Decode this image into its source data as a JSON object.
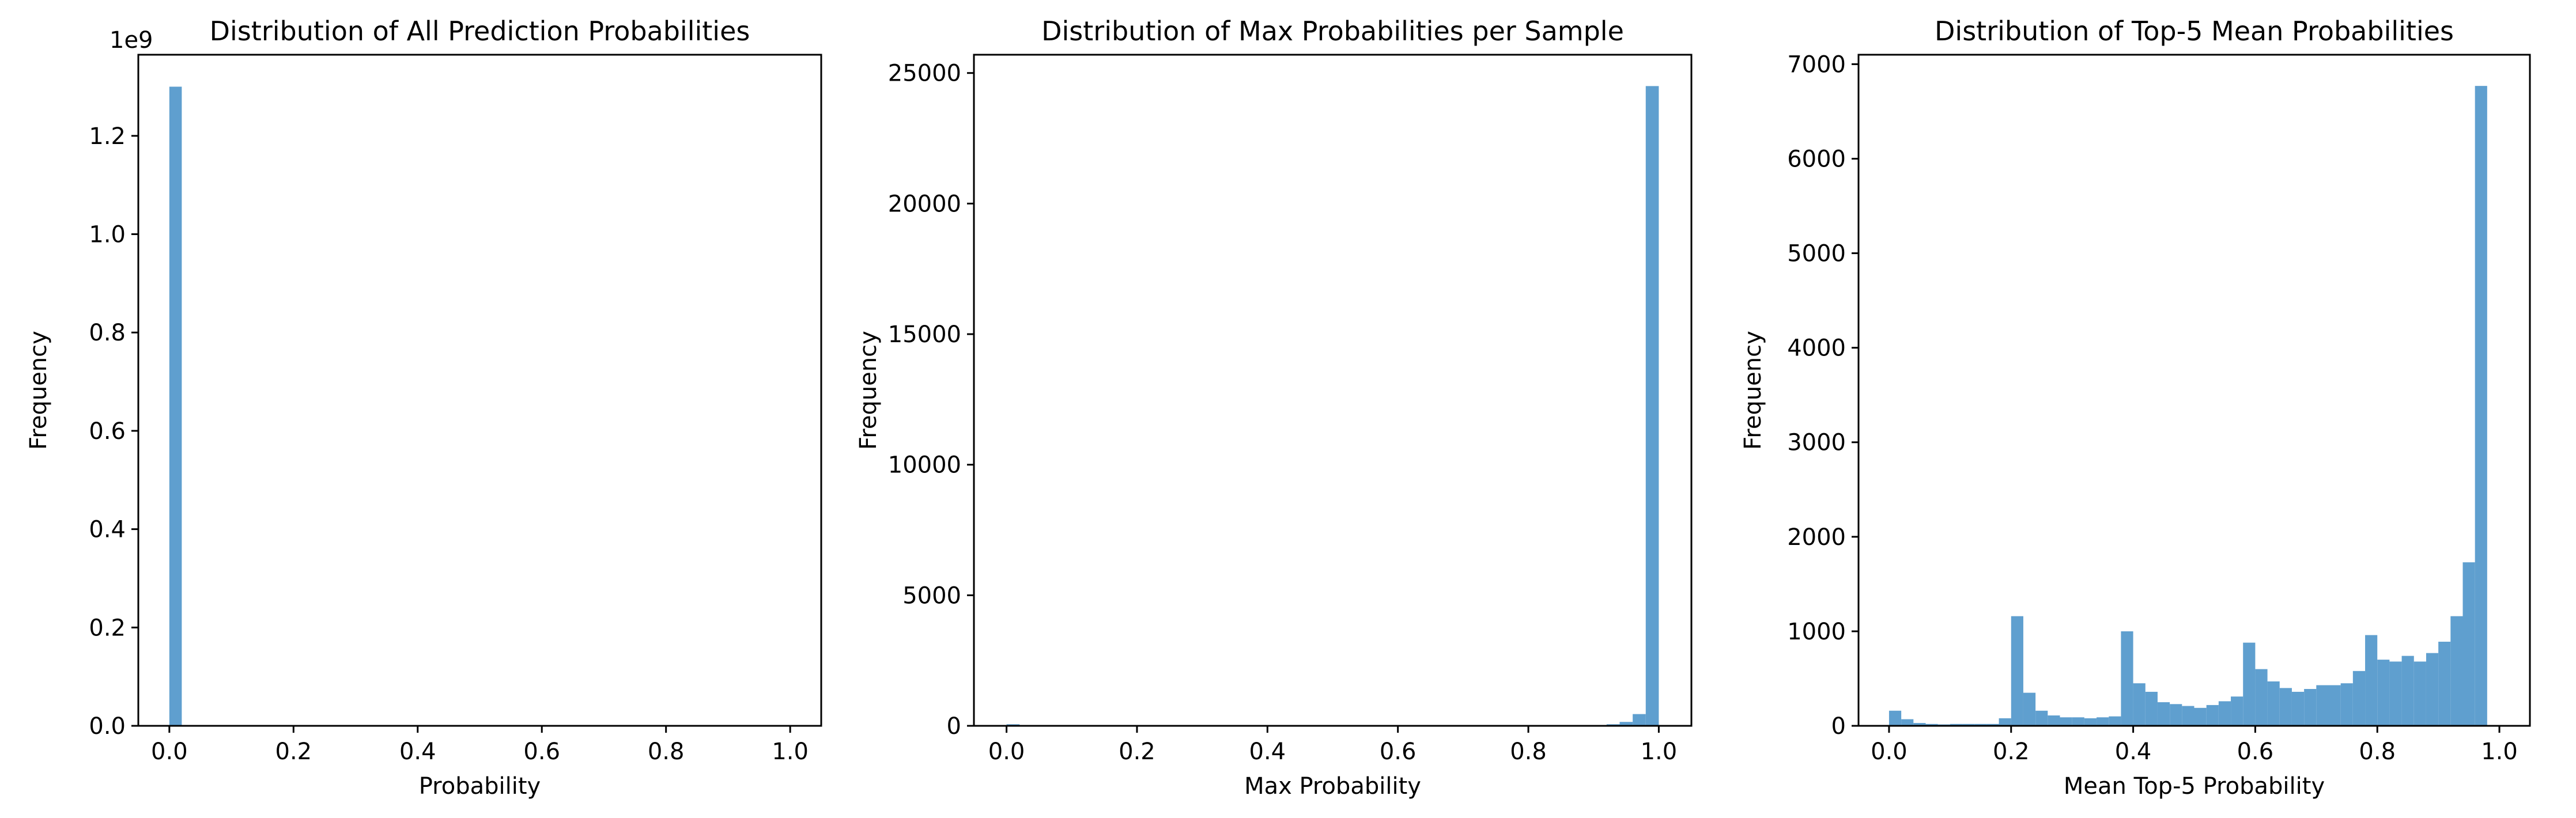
{
  "colors": {
    "bar": "#5f9fcf"
  },
  "chart_data": [
    {
      "type": "bar",
      "title": "Distribution of All Prediction Probabilities",
      "xlabel": "Probability",
      "ylabel": "Frequency",
      "x_ticks": [
        "0.0",
        "0.2",
        "0.4",
        "0.6",
        "0.8",
        "1.0"
      ],
      "y_ticks": [
        "0.0",
        "0.2",
        "0.4",
        "0.6",
        "0.8",
        "1.0",
        "1.2"
      ],
      "y_offset_text": "1e9",
      "xlim": [
        -0.05,
        1.05
      ],
      "ylim": [
        0,
        1365000000
      ],
      "bins": 50,
      "bin_range": [
        0,
        1
      ],
      "values": [
        1300000000,
        0,
        0,
        0,
        0,
        0,
        0,
        0,
        0,
        0,
        0,
        0,
        0,
        0,
        0,
        0,
        0,
        0,
        0,
        0,
        0,
        0,
        0,
        0,
        0,
        0,
        0,
        0,
        0,
        0,
        0,
        0,
        0,
        0,
        0,
        0,
        0,
        0,
        0,
        0,
        0,
        0,
        0,
        0,
        0,
        0,
        0,
        0,
        0,
        0
      ]
    },
    {
      "type": "bar",
      "title": "Distribution of Max Probabilities per Sample",
      "xlabel": "Max Probability",
      "ylabel": "Frequency",
      "x_ticks": [
        "0.0",
        "0.2",
        "0.4",
        "0.6",
        "0.8",
        "1.0"
      ],
      "y_ticks": [
        "0",
        "5000",
        "10000",
        "15000",
        "20000",
        "25000"
      ],
      "xlim": [
        -0.05,
        1.05
      ],
      "ylim": [
        0,
        25700
      ],
      "bins": 50,
      "bin_range": [
        0,
        1
      ],
      "values": [
        60,
        10,
        5,
        3,
        2,
        2,
        2,
        2,
        2,
        2,
        2,
        2,
        2,
        2,
        2,
        2,
        2,
        2,
        2,
        2,
        2,
        2,
        2,
        2,
        2,
        2,
        2,
        2,
        2,
        2,
        2,
        2,
        2,
        2,
        2,
        2,
        3,
        3,
        4,
        5,
        6,
        8,
        10,
        15,
        20,
        30,
        60,
        150,
        450,
        24500
      ]
    },
    {
      "type": "bar",
      "title": "Distribution of Top-5 Mean Probabilities",
      "xlabel": "Mean Top-5 Probability",
      "ylabel": "Frequency",
      "x_ticks": [
        "0.0",
        "0.2",
        "0.4",
        "0.6",
        "0.8",
        "1.0"
      ],
      "y_ticks": [
        "0",
        "1000",
        "2000",
        "3000",
        "4000",
        "5000",
        "6000",
        "7000"
      ],
      "xlim": [
        -0.05,
        1.05
      ],
      "ylim": [
        0,
        7100
      ],
      "bins": 50,
      "bin_range": [
        0,
        1
      ],
      "values": [
        160,
        70,
        30,
        20,
        15,
        20,
        20,
        20,
        20,
        80,
        1160,
        350,
        160,
        110,
        90,
        90,
        80,
        90,
        100,
        1000,
        450,
        360,
        250,
        230,
        210,
        190,
        220,
        260,
        310,
        880,
        600,
        470,
        400,
        360,
        390,
        430,
        430,
        450,
        580,
        960,
        700,
        680,
        740,
        680,
        770,
        890,
        1160,
        1730,
        6770,
        0
      ]
    }
  ]
}
